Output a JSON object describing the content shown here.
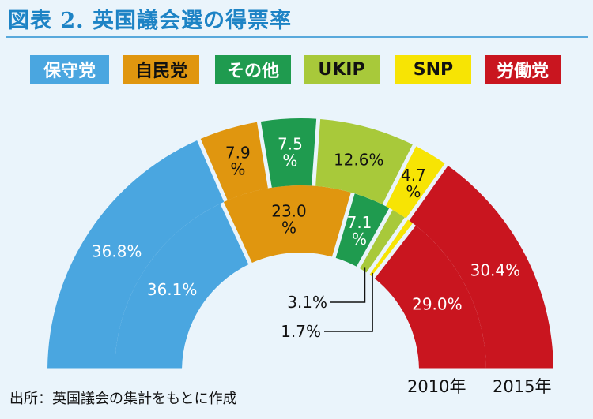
{
  "title": "図表 2. 英国議会選の得票率",
  "source": "出所：英国議会の集計をもとに作成",
  "colors": {
    "background": "#eaf4fb",
    "accent": "#1d83c5",
    "conservative": "#4aa6e0",
    "liberal_democrats": "#e0960f",
    "others": "#1f9b4f",
    "ukip": "#a8c93a",
    "snp": "#f7e404",
    "labour": "#c9151f"
  },
  "chart_data": {
    "type": "pie",
    "subtype": "semicircle-donut",
    "categories": [
      "保守党",
      "自民党",
      "その他",
      "UKIP",
      "SNP",
      "労働党"
    ],
    "series": [
      {
        "name": "2010年",
        "values": [
          36.1,
          23.0,
          7.1,
          3.1,
          1.7,
          29.0
        ],
        "labels": [
          "36.1%",
          "23.0\n%",
          "7.1\n%",
          "3.1%",
          "1.7%",
          "29.0%"
        ]
      },
      {
        "name": "2015年",
        "values": [
          36.8,
          7.9,
          7.5,
          12.6,
          4.7,
          30.4
        ],
        "labels": [
          "36.8%",
          "7.9\n%",
          "7.5\n%",
          "12.6%",
          "4.7\n%",
          "30.4%"
        ]
      }
    ],
    "legend": {
      "position": "top",
      "items": [
        {
          "label": "保守党",
          "color": "#4aa6e0",
          "text_color": "#ffffff"
        },
        {
          "label": "自民党",
          "color": "#e0960f",
          "text_color": "#111111"
        },
        {
          "label": "その他",
          "color": "#1f9b4f",
          "text_color": "#ffffff"
        },
        {
          "label": "UKIP",
          "color": "#a8c93a",
          "text_color": "#111111"
        },
        {
          "label": "SNP",
          "color": "#f7e404",
          "text_color": "#111111"
        },
        {
          "label": "労働党",
          "color": "#c9151f",
          "text_color": "#ffffff"
        }
      ]
    }
  }
}
